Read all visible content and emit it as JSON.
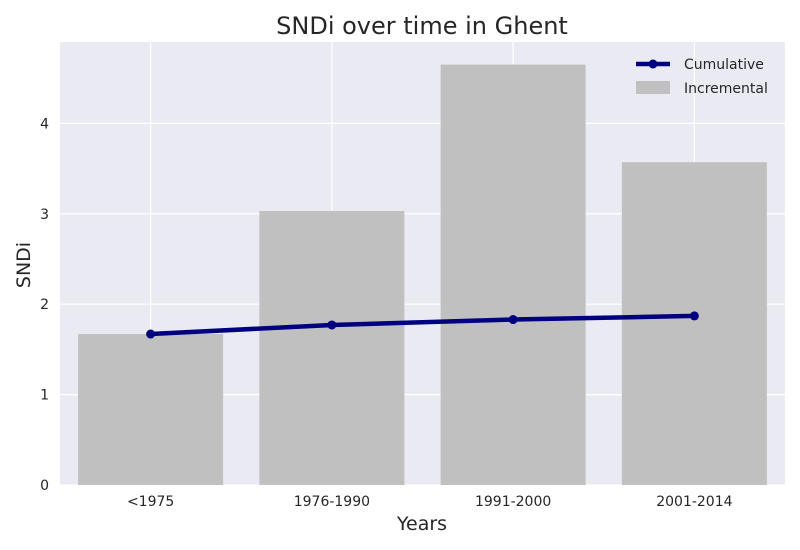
{
  "chart_data": {
    "type": "bar",
    "title": "SNDi over time in Ghent",
    "xlabel": "Years",
    "ylabel": "SNDi",
    "categories": [
      "<1975",
      "1976-1990",
      "1991-2000",
      "2001-2014"
    ],
    "series": [
      {
        "name": "Incremental",
        "kind": "bar",
        "color": "#c0c0c0",
        "values": [
          1.67,
          3.03,
          4.65,
          3.57
        ]
      },
      {
        "name": "Cumulative",
        "kind": "line",
        "color": "#000080",
        "marker": "circle",
        "values": [
          1.67,
          1.77,
          1.83,
          1.87
        ]
      }
    ],
    "ylim": [
      0,
      4.9
    ],
    "yticks": [
      0,
      1,
      2,
      3,
      4
    ],
    "ytick_labels": [
      "0",
      "1",
      "2",
      "3",
      "4"
    ],
    "grid": true,
    "legend_position": "top-right",
    "style": {
      "plot_background": "#eaeaf2",
      "grid_color": "#ffffff"
    }
  }
}
